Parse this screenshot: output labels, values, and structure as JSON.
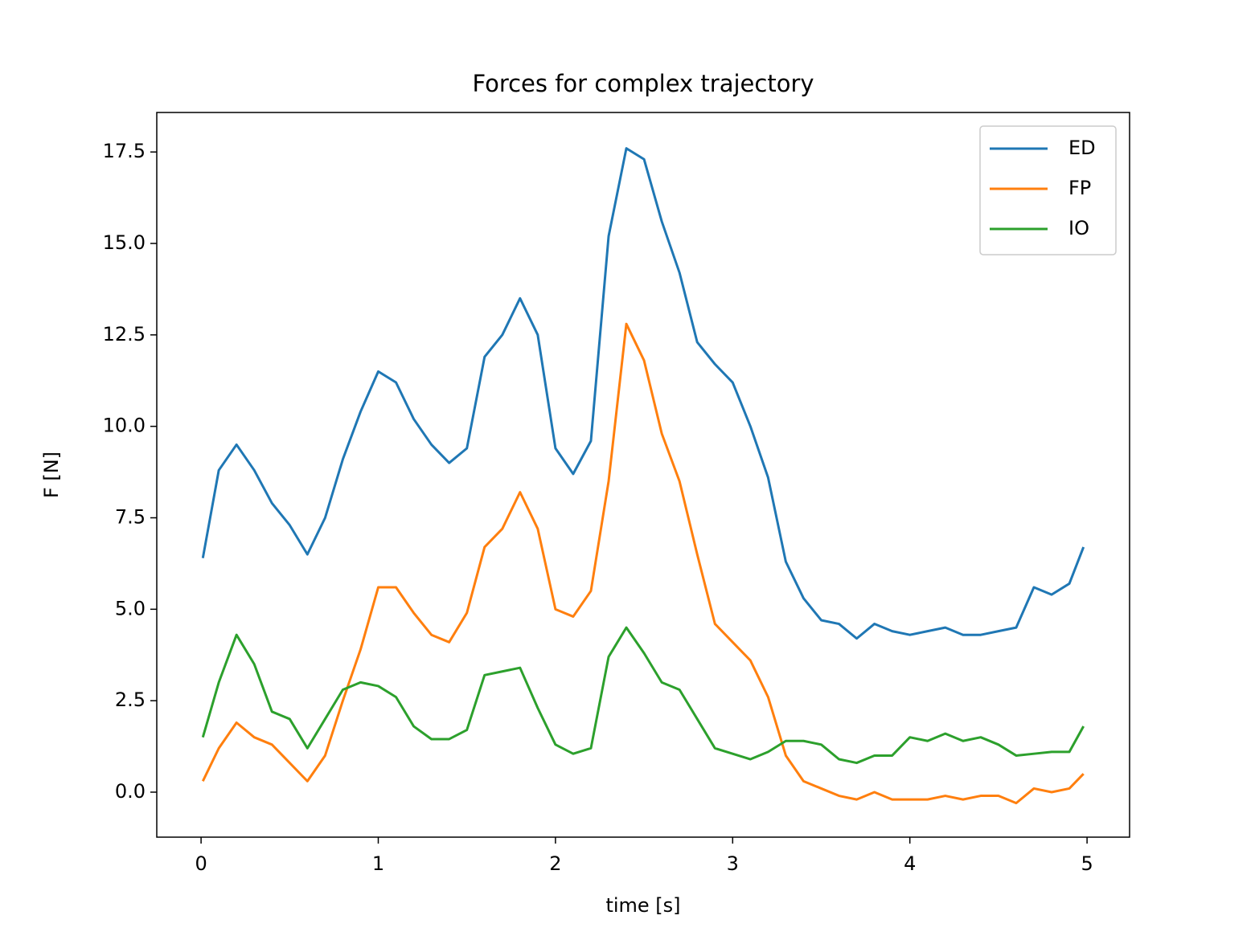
{
  "chart_data": {
    "type": "line",
    "title": "Forces for complex trajectory",
    "xlabel": "time [s]",
    "ylabel": "F [N]",
    "x": [
      0.01,
      0.1,
      0.2,
      0.3,
      0.4,
      0.5,
      0.6,
      0.7,
      0.8,
      0.9,
      1.0,
      1.1,
      1.2,
      1.3,
      1.4,
      1.5,
      1.6,
      1.7,
      1.8,
      1.9,
      2.0,
      2.1,
      2.2,
      2.3,
      2.4,
      2.5,
      2.6,
      2.7,
      2.8,
      2.9,
      3.0,
      3.1,
      3.2,
      3.3,
      3.4,
      3.5,
      3.6,
      3.7,
      3.8,
      3.9,
      4.0,
      4.1,
      4.2,
      4.3,
      4.4,
      4.5,
      4.6,
      4.7,
      4.8,
      4.9,
      4.98
    ],
    "series": [
      {
        "name": "ED",
        "color": "#1f77b4",
        "values": [
          6.4,
          8.8,
          9.5,
          8.8,
          7.9,
          7.3,
          6.5,
          7.5,
          9.1,
          10.4,
          11.5,
          11.2,
          10.2,
          9.5,
          9.0,
          9.4,
          11.9,
          12.5,
          13.5,
          12.5,
          9.4,
          8.7,
          9.6,
          15.2,
          17.6,
          17.3,
          15.6,
          14.2,
          12.3,
          11.7,
          11.2,
          10.0,
          8.6,
          6.3,
          5.3,
          4.7,
          4.6,
          4.2,
          4.6,
          4.4,
          4.3,
          4.4,
          4.5,
          4.3,
          4.3,
          4.4,
          4.5,
          5.6,
          5.4,
          5.7,
          6.7
        ]
      },
      {
        "name": "FP",
        "color": "#ff7f0e",
        "values": [
          0.3,
          1.2,
          1.9,
          1.5,
          1.3,
          0.8,
          0.3,
          1.0,
          2.5,
          3.9,
          5.6,
          5.6,
          4.9,
          4.3,
          4.1,
          4.9,
          6.7,
          7.2,
          8.2,
          7.2,
          5.0,
          4.8,
          5.5,
          8.5,
          12.8,
          11.8,
          9.8,
          8.5,
          6.5,
          4.6,
          4.1,
          3.6,
          2.6,
          1.0,
          0.3,
          0.1,
          -0.1,
          -0.2,
          0.0,
          -0.2,
          -0.2,
          -0.2,
          -0.1,
          -0.2,
          -0.1,
          -0.1,
          -0.3,
          0.1,
          0.0,
          0.1,
          0.5
        ]
      },
      {
        "name": "IO",
        "color": "#2ca02c",
        "values": [
          1.5,
          3.0,
          4.3,
          3.5,
          2.2,
          2.0,
          1.2,
          2.0,
          2.8,
          3.0,
          2.9,
          2.6,
          1.8,
          1.45,
          1.45,
          1.7,
          3.2,
          3.3,
          3.4,
          2.3,
          1.3,
          1.05,
          1.2,
          3.7,
          4.5,
          3.8,
          3.0,
          2.8,
          2.0,
          1.2,
          1.05,
          0.9,
          1.1,
          1.4,
          1.4,
          1.3,
          0.9,
          0.8,
          1.0,
          1.0,
          1.5,
          1.4,
          1.6,
          1.4,
          1.5,
          1.3,
          1.0,
          1.05,
          1.1,
          1.1,
          1.8
        ]
      }
    ],
    "xlim": [
      -0.25,
      5.24
    ],
    "ylim": [
      -1.23,
      18.58
    ],
    "xticks": [
      0,
      1,
      2,
      3,
      4,
      5
    ],
    "yticks": [
      {
        "value": 0,
        "label": "0.0"
      },
      2.5,
      {
        "value": 5,
        "label": "5.0"
      },
      7.5,
      {
        "value": 10,
        "label": "10.0"
      },
      12.5,
      {
        "value": 15,
        "label": "15.0"
      },
      17.5
    ],
    "legend": "upper right"
  }
}
